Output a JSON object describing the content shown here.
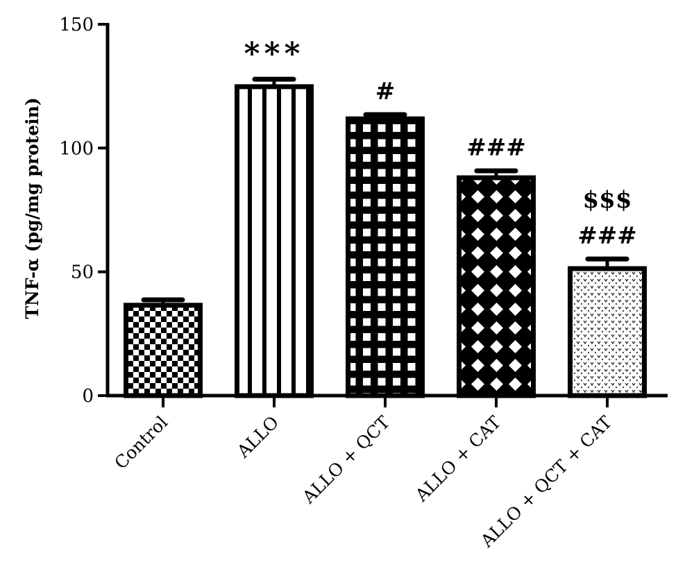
{
  "chart_data": {
    "type": "bar",
    "title": "",
    "xlabel": "",
    "ylabel": "TNF-α (pg/mg protein)",
    "ylim": [
      0,
      150
    ],
    "yticks": [
      0,
      50,
      100,
      150
    ],
    "grid": false,
    "categories": [
      "Control",
      "ALLO",
      "ALLO + QCT",
      "ALLO + CAT",
      "ALLO + QCT + CAT"
    ],
    "values": [
      36.5,
      124.8,
      111.8,
      88.0,
      51.3
    ],
    "error": [
      2.2,
      3.0,
      1.7,
      2.8,
      3.9
    ],
    "annotations": [
      [
        ""
      ],
      [
        "***"
      ],
      [
        "#"
      ],
      [
        "###"
      ],
      [
        "$$$",
        "###"
      ]
    ],
    "patterns": [
      "checkerboard",
      "vertical-stripes",
      "grid",
      "diamond-lattice",
      "dots"
    ],
    "colors": {
      "bar_stroke": "#000000",
      "background": "#ffffff"
    }
  }
}
